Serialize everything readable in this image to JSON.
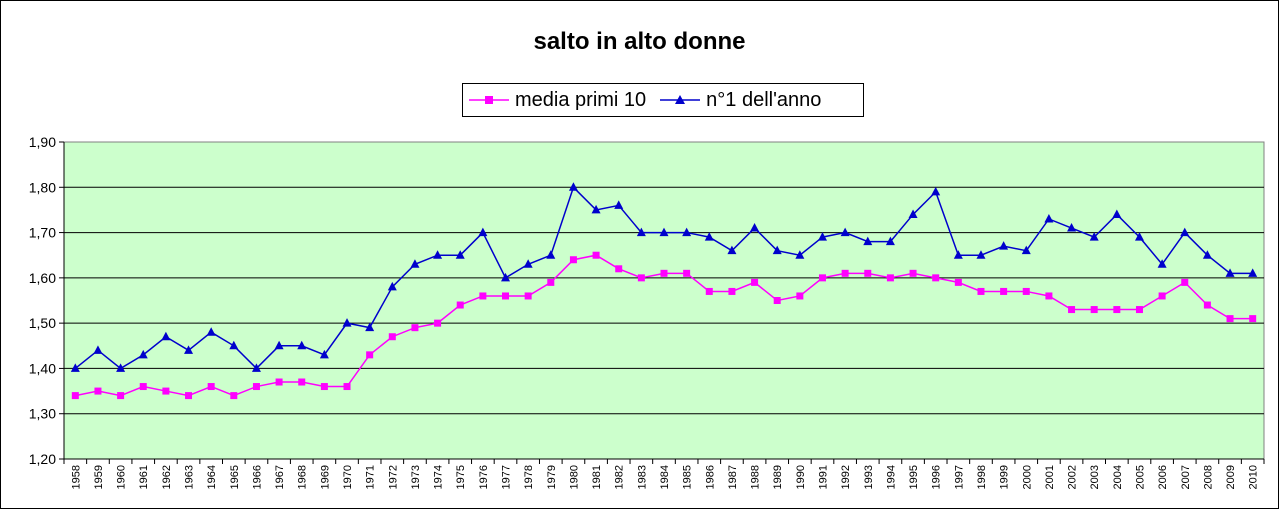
{
  "chart_data": {
    "type": "line",
    "title": "salto in alto donne",
    "xlabel": "",
    "ylabel": "",
    "ylim": [
      1.2,
      1.9
    ],
    "yticks": [
      "1,20",
      "1,30",
      "1,40",
      "1,50",
      "1,60",
      "1,70",
      "1,80",
      "1,90"
    ],
    "grid": true,
    "legend_position": "top-center",
    "plot_background": "#ccffcc",
    "x": [
      "1958",
      "1959",
      "1960",
      "1961",
      "1962",
      "1963",
      "1964",
      "1965",
      "1966",
      "1967",
      "1968",
      "1969",
      "1970",
      "1971",
      "1972",
      "1973",
      "1974",
      "1975",
      "1976",
      "1977",
      "1978",
      "1979",
      "1980",
      "1981",
      "1982",
      "1983",
      "1984",
      "1985",
      "1986",
      "1987",
      "1988",
      "1989",
      "1990",
      "1991",
      "1992",
      "1993",
      "1994",
      "1995",
      "1996",
      "1997",
      "1998",
      "1999",
      "2000",
      "2001",
      "2002",
      "2003",
      "2004",
      "2005",
      "2006",
      "2007",
      "2008",
      "2009",
      "2010"
    ],
    "series": [
      {
        "name": "media primi 10",
        "color": "#ff00ff",
        "marker": "square",
        "values": [
          1.34,
          1.35,
          1.34,
          1.36,
          1.35,
          1.34,
          1.36,
          1.34,
          1.36,
          1.37,
          1.37,
          1.36,
          1.36,
          1.43,
          1.47,
          1.49,
          1.5,
          1.54,
          1.56,
          1.56,
          1.56,
          1.59,
          1.64,
          1.65,
          1.62,
          1.6,
          1.61,
          1.61,
          1.57,
          1.57,
          1.59,
          1.55,
          1.56,
          1.6,
          1.61,
          1.61,
          1.6,
          1.61,
          1.6,
          1.59,
          1.57,
          1.57,
          1.57,
          1.56,
          1.53,
          1.53,
          1.53,
          1.53,
          1.56,
          1.59,
          1.54,
          1.51,
          1.51
        ]
      },
      {
        "name": "n°1 dell'anno",
        "color": "#0000cc",
        "marker": "triangle",
        "values": [
          1.4,
          1.44,
          1.4,
          1.43,
          1.47,
          1.44,
          1.48,
          1.45,
          1.4,
          1.45,
          1.45,
          1.43,
          1.5,
          1.49,
          1.58,
          1.63,
          1.65,
          1.65,
          1.7,
          1.6,
          1.63,
          1.65,
          1.8,
          1.75,
          1.76,
          1.7,
          1.7,
          1.7,
          1.69,
          1.66,
          1.71,
          1.66,
          1.65,
          1.69,
          1.7,
          1.68,
          1.68,
          1.74,
          1.79,
          1.65,
          1.65,
          1.67,
          1.66,
          1.73,
          1.71,
          1.69,
          1.74,
          1.69,
          1.63,
          1.7,
          1.65,
          1.61,
          1.61
        ]
      }
    ]
  }
}
